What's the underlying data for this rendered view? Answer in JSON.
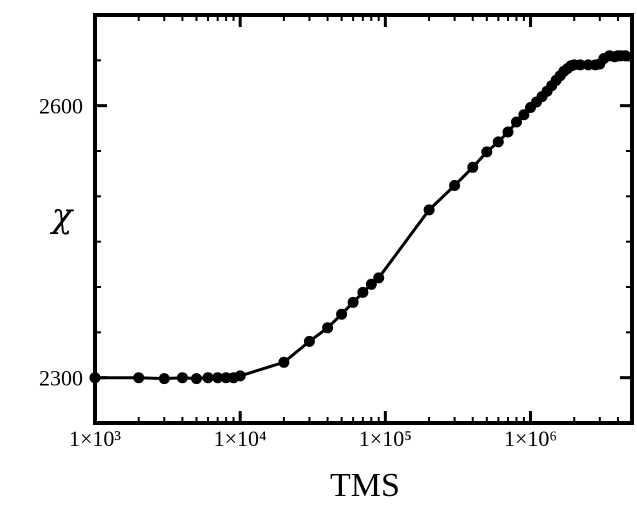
{
  "chart_data": {
    "type": "line",
    "xlabel": "TMS",
    "ylabel": "χ",
    "x_scale": "log",
    "xlim": [
      1000,
      5000000
    ],
    "ylim": [
      2250,
      2700
    ],
    "x_tick_values": [
      1000,
      10000,
      100000,
      1000000
    ],
    "x_tick_labels": [
      "1×10³",
      "1×10⁴",
      "1×10⁵",
      "1×10⁶"
    ],
    "y_tick_values": [
      2300,
      2600
    ],
    "y_tick_labels": [
      "2300",
      "2600"
    ],
    "grid": false,
    "series": [
      {
        "color": "#000000",
        "marker": "circle",
        "x": [
          1000,
          2000,
          3000,
          4000,
          5000,
          6000,
          7000,
          8000,
          9000,
          10000,
          20000,
          30000,
          40000,
          50000,
          60000,
          70000,
          80000,
          90000,
          200000,
          300000,
          400000,
          500000,
          600000,
          700000,
          800000,
          900000,
          1000000,
          1100000,
          1200000,
          1300000,
          1400000,
          1500000,
          1600000,
          1700000,
          1800000,
          1900000,
          2000000,
          2200000,
          2500000,
          2800000,
          3000000,
          3200000,
          3500000,
          3800000,
          4000000,
          4200000,
          4500000
        ],
        "y": [
          2300,
          2300,
          2299,
          2300,
          2299,
          2300,
          2300,
          2300,
          2300,
          2302,
          2317,
          2340,
          2355,
          2370,
          2383,
          2394,
          2403,
          2410,
          2485,
          2512,
          2532,
          2549,
          2560,
          2571,
          2582,
          2590,
          2598,
          2604,
          2610,
          2616,
          2622,
          2628,
          2633,
          2638,
          2641,
          2644,
          2645,
          2645,
          2645,
          2645,
          2646,
          2652,
          2655,
          2654,
          2655,
          2655,
          2655
        ]
      }
    ]
  }
}
